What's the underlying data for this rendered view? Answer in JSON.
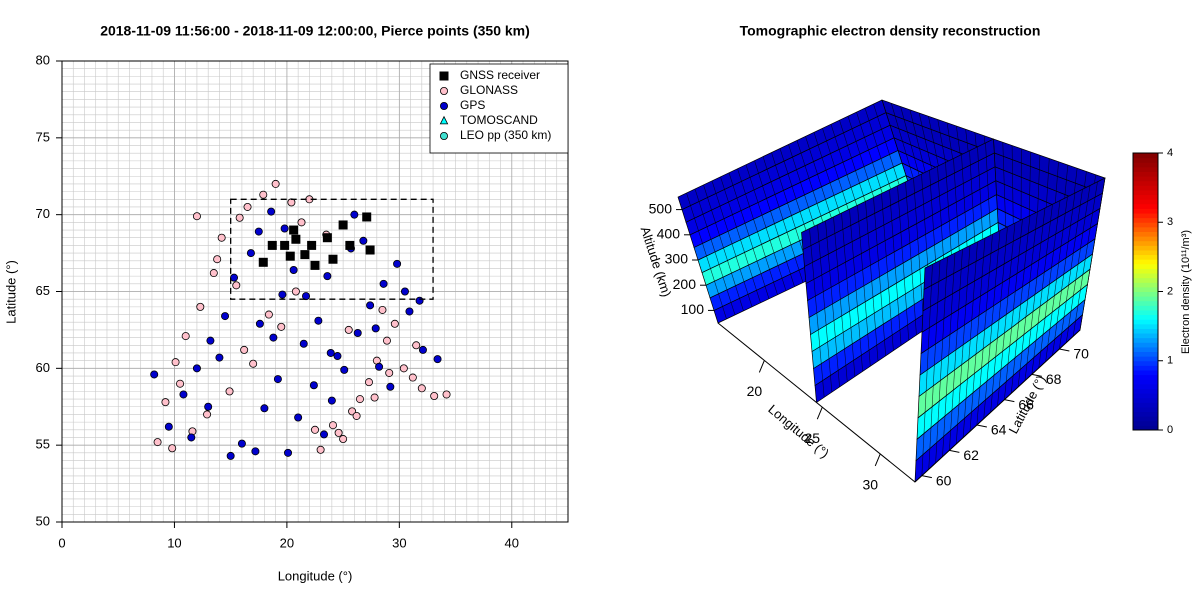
{
  "chart_data": [
    {
      "type": "scatter",
      "title": "2018-11-09 11:56:00 - 2018-11-09 12:00:00, Pierce points (350 km)",
      "xlabel": "Longitude (°)",
      "ylabel": "Latitude (°)",
      "xlim": [
        0,
        45
      ],
      "ylim": [
        50,
        80
      ],
      "xticks": [
        0,
        10,
        20,
        30,
        40
      ],
      "yticks": [
        50,
        55,
        60,
        65,
        70,
        75,
        80
      ],
      "grid": true,
      "legend": "topright",
      "box": {
        "x": [
          15,
          33
        ],
        "y": [
          64.5,
          71
        ]
      },
      "series": [
        {
          "name": "GNSS receiver",
          "color": "#000000",
          "marker": "square",
          "x": [
            27.1,
            25.0,
            20.6,
            23.6,
            19.8,
            22.2,
            18.7,
            17.9,
            20.3,
            21.6,
            25.6,
            27.4,
            24.1,
            22.5,
            20.8
          ],
          "y": [
            69.85,
            69.33,
            69.0,
            68.5,
            68.0,
            68.0,
            68.0,
            66.9,
            67.3,
            67.4,
            68.0,
            67.7,
            67.1,
            66.7,
            68.4
          ]
        },
        {
          "name": "GLONASS",
          "color": "#ffc0cb",
          "marker": "circle",
          "x": [
            8.5,
            9.2,
            10.1,
            11.0,
            12.3,
            13.5,
            14.2,
            15.8,
            16.5,
            17.9,
            19.0,
            20.4,
            21.3,
            22.0,
            23.5,
            24.1,
            25.0,
            25.8,
            26.5,
            27.3,
            28.0,
            28.9,
            29.6,
            30.4,
            31.2,
            32.0,
            33.1,
            34.2,
            9.8,
            11.6,
            12.9,
            14.9,
            16.2,
            18.4,
            20.8,
            23.0,
            24.6,
            26.2,
            27.8,
            29.1,
            12.0,
            13.8,
            15.5,
            10.5,
            17.0,
            19.5,
            22.5,
            25.5,
            28.5,
            31.5
          ],
          "y": [
            55.2,
            57.8,
            60.4,
            62.1,
            64.0,
            66.2,
            68.5,
            69.8,
            70.5,
            71.3,
            72.0,
            70.8,
            69.5,
            71.0,
            68.7,
            56.3,
            55.4,
            57.2,
            58.0,
            59.1,
            60.5,
            61.8,
            62.9,
            60.0,
            59.4,
            58.7,
            58.2,
            58.3,
            54.8,
            55.9,
            57.0,
            58.5,
            61.2,
            63.5,
            65.0,
            54.7,
            55.8,
            56.9,
            58.1,
            59.7,
            69.9,
            67.1,
            65.4,
            59.0,
            60.3,
            62.7,
            56.0,
            62.5,
            63.8,
            61.5
          ]
        },
        {
          "name": "GPS",
          "color": "#0000cd",
          "marker": "circle",
          "x": [
            8.2,
            9.5,
            10.8,
            12.0,
            13.2,
            14.5,
            15.3,
            16.8,
            17.5,
            18.6,
            19.8,
            20.6,
            21.7,
            22.8,
            23.9,
            25.1,
            26.3,
            27.4,
            28.6,
            29.8,
            30.9,
            32.1,
            33.4,
            15.0,
            16.0,
            17.2,
            18.0,
            19.2,
            20.1,
            21.0,
            22.4,
            23.3,
            24.5,
            25.7,
            26.8,
            27.9,
            29.2,
            30.5,
            31.8,
            13.0,
            14.0,
            18.8,
            21.5,
            24.0,
            26.0,
            28.2,
            11.5,
            19.6,
            23.6,
            17.6
          ],
          "y": [
            59.6,
            56.2,
            58.3,
            60.0,
            61.8,
            63.4,
            65.9,
            67.5,
            68.9,
            70.2,
            69.1,
            66.4,
            64.7,
            63.1,
            61.0,
            59.9,
            62.3,
            64.1,
            65.5,
            66.8,
            63.7,
            61.2,
            60.6,
            54.3,
            55.1,
            54.6,
            57.4,
            59.3,
            54.5,
            56.8,
            58.9,
            55.7,
            60.8,
            67.8,
            68.3,
            62.6,
            58.8,
            65.0,
            64.4,
            57.5,
            60.7,
            62.0,
            61.6,
            57.9,
            70.0,
            60.1,
            55.5,
            64.8,
            66.0,
            62.9
          ]
        },
        {
          "name": "TOMOSCAND",
          "color": "#00ffff",
          "marker": "triangle",
          "x": [],
          "y": []
        },
        {
          "name": "LEO pp (350 km)",
          "color": "#40e0d0",
          "marker": "circle",
          "x": [],
          "y": []
        }
      ]
    },
    {
      "type": "surface3d",
      "title": "Tomographic electron density reconstruction",
      "xlabel": "Longitude (°)",
      "ylabel": "Latitude (°)",
      "zlabel": "Altitude (km)",
      "xlim": [
        16,
        33
      ],
      "ylim": [
        59.5,
        71.5
      ],
      "zlim": [
        50,
        550
      ],
      "xticks": [
        20,
        25,
        30
      ],
      "yticks": [
        60,
        62,
        64,
        66,
        68,
        70
      ],
      "zticks": [
        100,
        200,
        300,
        400,
        500
      ],
      "colorbar_label": "Electron density  (10¹¹/m³)",
      "clim": [
        0,
        4
      ],
      "cticks": [
        0,
        1,
        2,
        3,
        4
      ],
      "colormap": [
        "#00008f",
        "#0000ff",
        "#00ffff",
        "#ffff00",
        "#ff0000",
        "#800000"
      ],
      "altitudes": [
        50,
        100,
        150,
        200,
        250,
        300,
        350,
        400,
        450,
        500,
        550
      ],
      "walls": [
        {
          "latitude": 71.5,
          "density": [
            0.4,
            0.6,
            0.8,
            1.0,
            0.9,
            0.7,
            0.5,
            0.4,
            0.3,
            0.3
          ]
        },
        {
          "longitude": 16,
          "density": [
            0.6,
            0.9,
            1.3,
            1.7,
            1.5,
            1.1,
            0.8,
            0.6,
            0.5,
            0.4
          ]
        },
        {
          "longitude": 24.5,
          "density": [
            0.5,
            0.9,
            1.4,
            1.6,
            1.3,
            0.9,
            0.6,
            0.5,
            0.4,
            0.3
          ]
        },
        {
          "longitude": 33,
          "density": [
            0.6,
            1.1,
            1.6,
            1.9,
            1.5,
            1.0,
            0.7,
            0.5,
            0.4,
            0.3
          ]
        }
      ]
    }
  ]
}
